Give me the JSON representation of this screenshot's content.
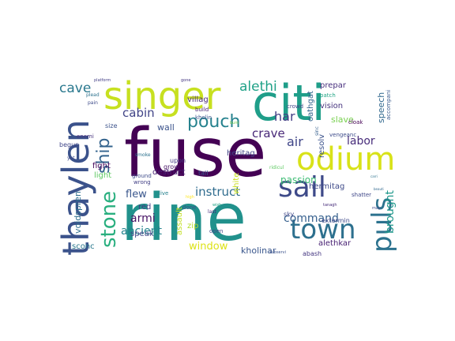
{
  "word_cloud": {
    "words": [
      {
        "text": "fuse",
        "color": "#440154"
      },
      {
        "text": "rine",
        "color": "#21918c"
      },
      {
        "text": "citi",
        "color": "#1f9e89"
      },
      {
        "text": "singer",
        "color": "#c7e020"
      },
      {
        "text": "odium",
        "color": "#d8e219"
      },
      {
        "text": "thaylen",
        "color": "#3b528b"
      },
      {
        "text": "sail",
        "color": "#3e4a89"
      },
      {
        "text": "town",
        "color": "#2d708e"
      },
      {
        "text": "puls",
        "color": "#2c728e"
      },
      {
        "text": "stone",
        "color": "#29af7f"
      },
      {
        "text": "pouch",
        "color": "#26828e"
      },
      {
        "text": "ship",
        "color": "#33638d"
      },
      {
        "text": "alethi",
        "color": "#1fa187"
      },
      {
        "text": "cave",
        "color": "#2a788e"
      },
      {
        "text": "cabin",
        "color": "#414487"
      },
      {
        "text": "har",
        "color": "#433e85"
      },
      {
        "text": "crave",
        "color": "#482878"
      },
      {
        "text": "air",
        "color": "#404688"
      },
      {
        "text": "labor",
        "color": "#472c7a"
      },
      {
        "text": "instruct",
        "color": "#2f6c8e"
      },
      {
        "text": "armi",
        "color": "#471365"
      },
      {
        "text": "flew",
        "color": "#39568c"
      },
      {
        "text": "command",
        "color": "#355f8d"
      },
      {
        "text": "brought",
        "color": "#1f988b"
      },
      {
        "text": "ancient",
        "color": "#25848e"
      },
      {
        "text": "window",
        "color": "#dde318"
      },
      {
        "text": "voidspren",
        "color": "#2e6e8e"
      },
      {
        "text": "fight",
        "color": "#46085c"
      },
      {
        "text": "red",
        "color": "#443983"
      },
      {
        "text": "light",
        "color": "#5ec962"
      },
      {
        "text": "passion",
        "color": "#3dbc74"
      },
      {
        "text": "wall",
        "color": "#3b528b"
      },
      {
        "text": "speak",
        "color": "#414487"
      },
      {
        "text": "kholinar",
        "color": "#39568c"
      },
      {
        "text": "sconc",
        "color": "#2a788e"
      },
      {
        "text": "hermitag",
        "color": "#3e4a89"
      },
      {
        "text": "alethkar",
        "color": "#482173"
      },
      {
        "text": "prepar",
        "color": "#472f7d"
      },
      {
        "text": "vision",
        "color": "#46337e"
      },
      {
        "text": "slave",
        "color": "#7ad151"
      },
      {
        "text": "speech",
        "color": "#31688e"
      },
      {
        "text": "zip",
        "color": "#b5de2b"
      },
      {
        "text": "assault",
        "color": "#c2df23"
      },
      {
        "text": "destruct",
        "color": "#482475"
      },
      {
        "text": "heritag",
        "color": "#414487"
      },
      {
        "text": "villag",
        "color": "#482878"
      },
      {
        "text": "resolv",
        "color": "#3b528b"
      },
      {
        "text": "oathgat",
        "color": "#33638d"
      },
      {
        "text": "extermin",
        "color": "#3e4989"
      },
      {
        "text": "abash",
        "color": "#453781"
      },
      {
        "text": "white",
        "color": "#c8e020"
      },
      {
        "text": "size",
        "color": "#3b528b"
      },
      {
        "text": "begun",
        "color": "#404688"
      },
      {
        "text": "enemi",
        "color": "#46327e"
      },
      {
        "text": "grow",
        "color": "#471365"
      },
      {
        "text": "upon",
        "color": "#443a83"
      },
      {
        "text": "tall",
        "color": "#39568c"
      },
      {
        "text": "ground",
        "color": "#3e4c8a"
      },
      {
        "text": "wrong",
        "color": "#424086"
      },
      {
        "text": "live",
        "color": "#26828e"
      },
      {
        "text": "done",
        "color": "#3b528b"
      },
      {
        "text": "open",
        "color": "#404688"
      },
      {
        "text": "sky",
        "color": "#3f4889"
      },
      {
        "text": "vengeanc",
        "color": "#3e4c8a"
      },
      {
        "text": "cloak",
        "color": "#440154"
      },
      {
        "text": "accompani",
        "color": "#38598c"
      },
      {
        "text": "crowd",
        "color": "#404588"
      },
      {
        "text": "kholin",
        "color": "#3b528b"
      },
      {
        "text": "build",
        "color": "#481f70"
      },
      {
        "text": "patch",
        "color": "#21a585"
      },
      {
        "text": "pain",
        "color": "#3e4a89"
      },
      {
        "text": "plead",
        "color": "#2c728e"
      },
      {
        "text": "platform",
        "color": "#433e85"
      },
      {
        "text": "gone",
        "color": "#453781"
      },
      {
        "text": "shatter",
        "color": "#3f4788"
      },
      {
        "text": "last",
        "color": "#472c7a"
      },
      {
        "text": "smoke",
        "color": "#2c728e"
      },
      {
        "text": "subservi",
        "color": "#3b528b"
      },
      {
        "text": "ridicul",
        "color": "#5ec962"
      },
      {
        "text": "yet",
        "color": "#3e4a89"
      },
      {
        "text": "sinc",
        "color": "#355f8d"
      },
      {
        "text": "beauti",
        "color": "#31688e"
      },
      {
        "text": "carri",
        "color": "#2c728e"
      },
      {
        "text": "may",
        "color": "#3e4a89"
      },
      {
        "text": "tanagh",
        "color": "#472c7a"
      },
      {
        "text": "burn",
        "color": "#7ad151"
      },
      {
        "text": "high",
        "color": "#fde725"
      },
      {
        "text": "wish",
        "color": "#20a386"
      }
    ]
  }
}
